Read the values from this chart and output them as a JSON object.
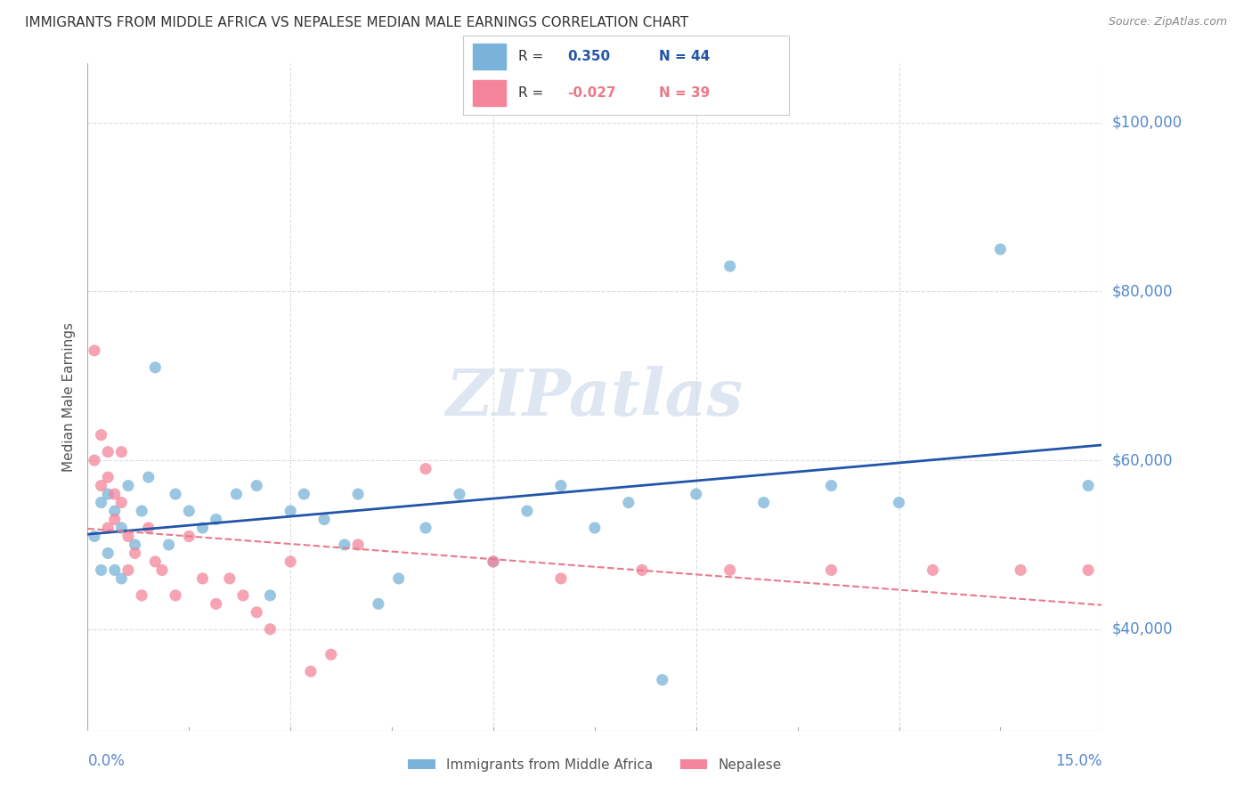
{
  "title": "IMMIGRANTS FROM MIDDLE AFRICA VS NEPALESE MEDIAN MALE EARNINGS CORRELATION CHART",
  "source": "Source: ZipAtlas.com",
  "ylabel": "Median Male Earnings",
  "ytick_labels": [
    "$40,000",
    "$60,000",
    "$80,000",
    "$100,000"
  ],
  "ytick_values": [
    40000,
    60000,
    80000,
    100000
  ],
  "ylim": [
    28000,
    107000
  ],
  "xlim": [
    0.0,
    0.15
  ],
  "series1_label": "Immigrants from Middle Africa",
  "series2_label": "Nepalese",
  "series1_color": "#7ab3d9",
  "series2_color": "#f4849a",
  "trendline1_color": "#2255aa",
  "trendline2_color": "#e87a8a",
  "background_color": "#ffffff",
  "watermark": "ZIPatlas",
  "watermark_color": "#c8d8e8",
  "title_color": "#333333",
  "axis_label_color": "#5588cc",
  "grid_color": "#dddddd",
  "r1": "0.350",
  "n1": "44",
  "r2": "-0.027",
  "n2": "39",
  "series1_x": [
    0.001,
    0.002,
    0.002,
    0.003,
    0.003,
    0.004,
    0.004,
    0.005,
    0.005,
    0.006,
    0.007,
    0.008,
    0.009,
    0.01,
    0.012,
    0.013,
    0.015,
    0.017,
    0.019,
    0.022,
    0.025,
    0.027,
    0.03,
    0.032,
    0.035,
    0.038,
    0.04,
    0.043,
    0.046,
    0.05,
    0.055,
    0.06,
    0.065,
    0.07,
    0.075,
    0.08,
    0.085,
    0.09,
    0.095,
    0.1,
    0.11,
    0.12,
    0.135,
    0.148
  ],
  "series1_y": [
    51000,
    55000,
    47000,
    56000,
    49000,
    47000,
    54000,
    52000,
    46000,
    57000,
    50000,
    54000,
    58000,
    71000,
    50000,
    56000,
    54000,
    52000,
    53000,
    56000,
    57000,
    44000,
    54000,
    56000,
    53000,
    50000,
    56000,
    43000,
    46000,
    52000,
    56000,
    48000,
    54000,
    57000,
    52000,
    55000,
    34000,
    56000,
    83000,
    55000,
    57000,
    55000,
    85000,
    57000
  ],
  "series2_x": [
    0.001,
    0.001,
    0.002,
    0.002,
    0.003,
    0.003,
    0.003,
    0.004,
    0.004,
    0.005,
    0.005,
    0.006,
    0.006,
    0.007,
    0.008,
    0.009,
    0.01,
    0.011,
    0.013,
    0.015,
    0.017,
    0.019,
    0.021,
    0.023,
    0.025,
    0.027,
    0.03,
    0.033,
    0.036,
    0.04,
    0.05,
    0.06,
    0.07,
    0.082,
    0.095,
    0.11,
    0.125,
    0.138,
    0.148
  ],
  "series2_y": [
    73000,
    60000,
    63000,
    57000,
    58000,
    52000,
    61000,
    56000,
    53000,
    61000,
    55000,
    51000,
    47000,
    49000,
    44000,
    52000,
    48000,
    47000,
    44000,
    51000,
    46000,
    43000,
    46000,
    44000,
    42000,
    40000,
    48000,
    35000,
    37000,
    50000,
    59000,
    48000,
    46000,
    47000,
    47000,
    47000,
    47000,
    47000,
    47000
  ]
}
